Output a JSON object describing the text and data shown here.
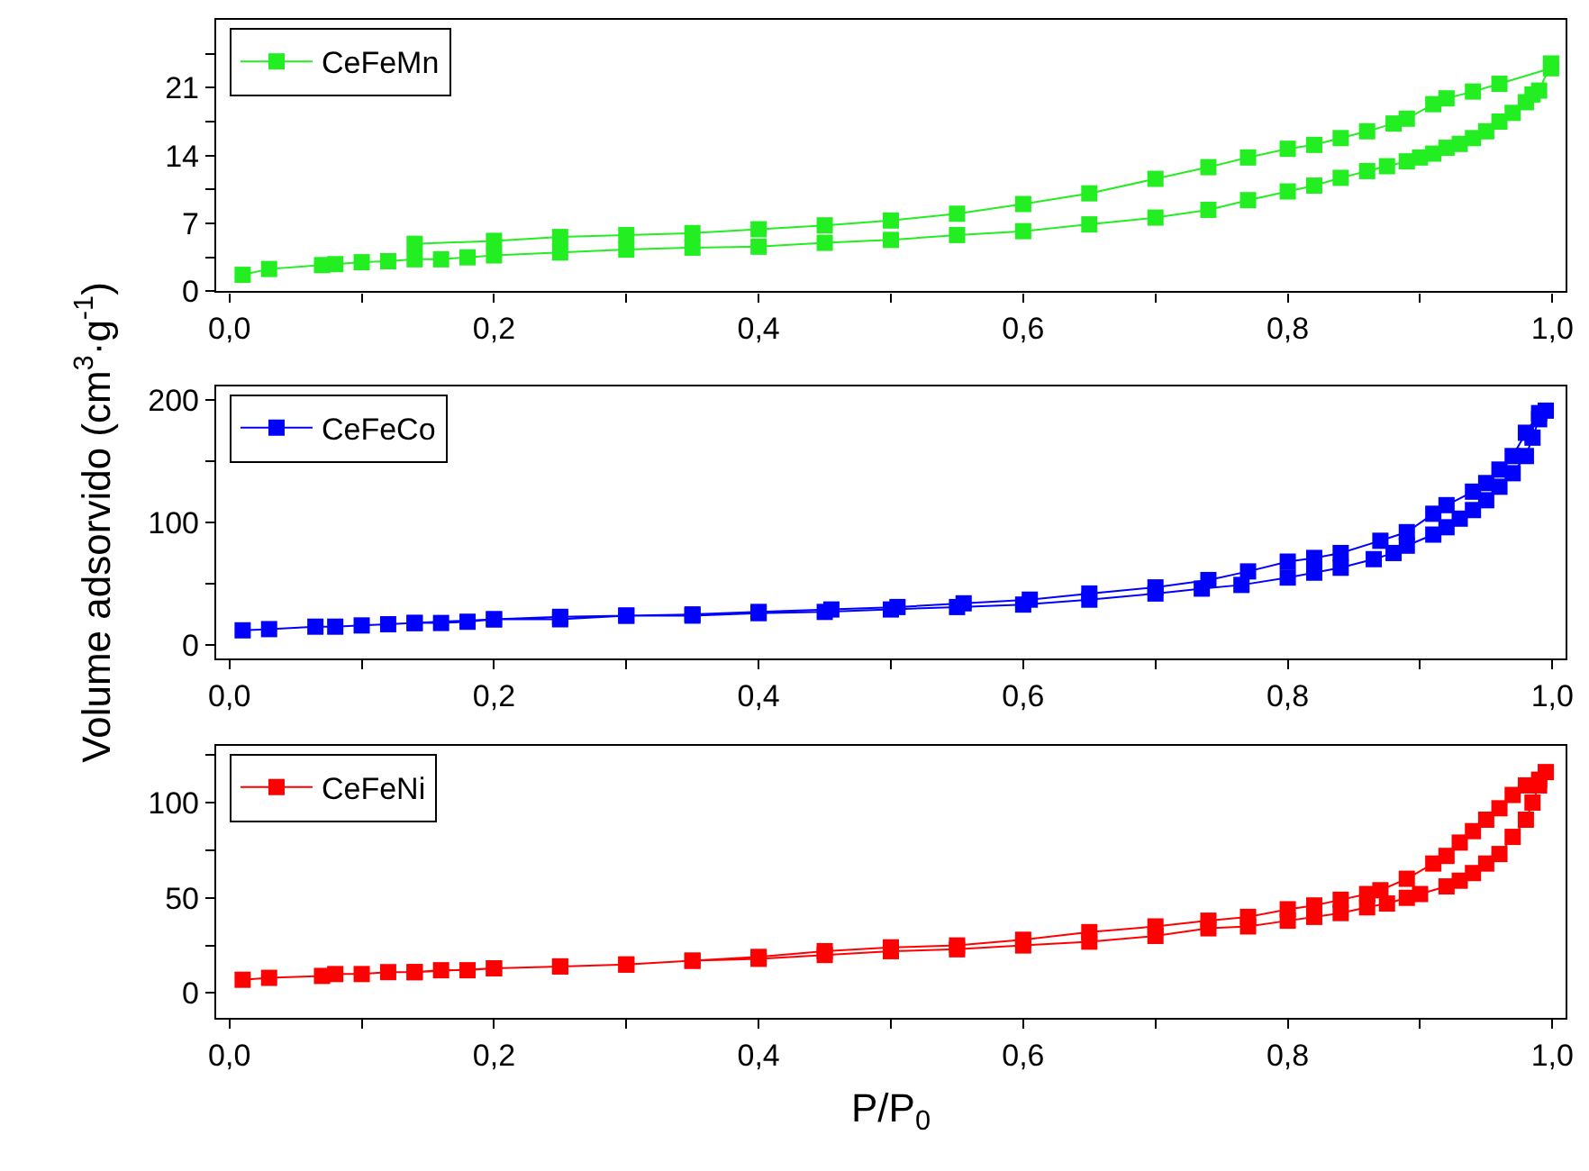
{
  "chart_data": [
    {
      "type": "line",
      "marker": "square",
      "line_style": "solid",
      "legend": "top left",
      "xlim": [
        -0.01,
        1.01
      ],
      "ylim": [
        0,
        28
      ],
      "xticks": [
        {
          "value": 0,
          "label": "0,0"
        },
        {
          "value": 0.1,
          "label": null
        },
        {
          "value": 0.2,
          "label": "0,2"
        },
        {
          "value": 0.3,
          "label": null
        },
        {
          "value": 0.4,
          "label": "0,4"
        },
        {
          "value": 0.5,
          "label": null
        },
        {
          "value": 0.6,
          "label": "0,6"
        },
        {
          "value": 0.7,
          "label": null
        },
        {
          "value": 0.8,
          "label": "0,8"
        },
        {
          "value": 0.9,
          "label": null
        },
        {
          "value": 1.0,
          "label": "1,0"
        }
      ],
      "yticks": [
        0,
        {
          "value": 3.5,
          "label": null
        },
        7,
        {
          "value": 10.5,
          "label": null
        },
        14,
        {
          "value": 17.5,
          "label": null
        },
        21,
        {
          "value": 24.5,
          "label": null
        }
      ],
      "series": [
        {
          "name": "CeFeMn",
          "color": "#22ee22",
          "x": [
            0.01,
            0.03,
            0.07,
            0.08,
            0.1,
            0.12,
            0.14,
            0.16,
            0.18,
            0.2,
            0.25,
            0.3,
            0.35,
            0.4,
            0.45,
            0.5,
            0.55,
            0.6,
            0.65,
            0.7,
            0.74,
            0.77,
            0.8,
            0.82,
            0.84,
            0.86,
            0.875,
            0.89,
            0.9,
            0.91,
            0.92,
            0.93,
            0.94,
            0.95,
            0.96,
            0.97,
            0.98,
            0.985,
            0.99,
            0.999,
            0.999,
            0.96,
            0.94,
            0.92,
            0.91,
            0.89,
            0.88,
            0.86,
            0.84,
            0.82,
            0.8,
            0.77,
            0.74,
            0.7,
            0.65,
            0.6,
            0.55,
            0.5,
            0.45,
            0.4,
            0.35,
            0.3,
            0.25,
            0.2,
            0.14
          ],
          "values": [
            1.7,
            2.3,
            2.7,
            2.8,
            3.0,
            3.1,
            3.3,
            3.3,
            3.5,
            3.7,
            4.0,
            4.3,
            4.5,
            4.6,
            5.0,
            5.3,
            5.8,
            6.2,
            6.9,
            7.6,
            8.4,
            9.4,
            10.3,
            10.9,
            11.7,
            12.4,
            12.9,
            13.4,
            13.8,
            14.2,
            14.8,
            15.2,
            15.8,
            16.5,
            17.5,
            18.4,
            19.5,
            20.3,
            20.7,
            23.5,
            23.0,
            21.4,
            20.6,
            19.9,
            19.3,
            17.8,
            17.3,
            16.5,
            15.8,
            15.1,
            14.7,
            13.8,
            12.8,
            11.6,
            10.1,
            9.0,
            8.0,
            7.3,
            6.8,
            6.4,
            6.0,
            5.8,
            5.6,
            5.2,
            4.9
          ]
        }
      ]
    },
    {
      "type": "line",
      "marker": "square",
      "line_style": "solid",
      "legend": "top left",
      "ylabel": "Volume adsorvido (cm$^{3}$·g$^{-1}$)",
      "xlim": [
        -0.01,
        1.01
      ],
      "ylim": [
        -11,
        211
      ],
      "xticks": [
        {
          "value": 0,
          "label": "0,0"
        },
        {
          "value": 0.1,
          "label": null
        },
        {
          "value": 0.2,
          "label": "0,2"
        },
        {
          "value": 0.3,
          "label": null
        },
        {
          "value": 0.4,
          "label": "0,4"
        },
        {
          "value": 0.5,
          "label": null
        },
        {
          "value": 0.6,
          "label": "0,6"
        },
        {
          "value": 0.7,
          "label": null
        },
        {
          "value": 0.8,
          "label": "0,8"
        },
        {
          "value": 0.9,
          "label": null
        },
        {
          "value": 1.0,
          "label": "1,0"
        }
      ],
      "yticks": [
        0,
        {
          "value": 50,
          "label": null
        },
        100,
        {
          "value": 150,
          "label": null
        },
        200
      ],
      "series": [
        {
          "name": "CeFeCo",
          "color": "#0000ff",
          "x": [
            0.01,
            0.03,
            0.065,
            0.08,
            0.1,
            0.12,
            0.14,
            0.16,
            0.18,
            0.2,
            0.25,
            0.3,
            0.35,
            0.4,
            0.45,
            0.5,
            0.55,
            0.6,
            0.65,
            0.7,
            0.735,
            0.765,
            0.8,
            0.82,
            0.84,
            0.865,
            0.88,
            0.89,
            0.91,
            0.92,
            0.93,
            0.94,
            0.95,
            0.96,
            0.97,
            0.98,
            0.985,
            0.99,
            0.995,
            0.99,
            0.98,
            0.97,
            0.96,
            0.95,
            0.94,
            0.92,
            0.91,
            0.89,
            0.87,
            0.84,
            0.82,
            0.8,
            0.77,
            0.74,
            0.7,
            0.65,
            0.605,
            0.555,
            0.505,
            0.455,
            0.4,
            0.35,
            0.3,
            0.25,
            0.2,
            0.14
          ],
          "values": [
            12,
            13,
            15,
            15,
            16,
            17,
            18,
            18,
            19,
            21,
            21,
            24,
            24,
            26,
            27,
            29,
            31,
            33,
            37,
            42,
            46,
            49,
            55,
            59,
            63,
            70,
            75,
            81,
            90,
            96,
            103,
            110,
            118,
            129,
            140,
            154,
            169,
            184,
            191,
            189,
            173,
            154,
            143,
            132,
            125,
            114,
            107,
            92,
            85,
            75,
            71,
            68,
            60,
            53,
            47,
            42,
            37,
            34,
            31,
            29,
            27,
            25,
            24,
            23,
            21,
            18
          ]
        }
      ]
    },
    {
      "type": "line",
      "marker": "square",
      "line_style": "solid",
      "legend": "top left",
      "xlabel": "P/P$_{0}$",
      "xlim": [
        -0.01,
        1.01
      ],
      "ylim": [
        -13,
        130
      ],
      "xticks": [
        {
          "value": 0,
          "label": "0,0"
        },
        {
          "value": 0.1,
          "label": null
        },
        {
          "value": 0.2,
          "label": "0,2"
        },
        {
          "value": 0.3,
          "label": null
        },
        {
          "value": 0.4,
          "label": "0,4"
        },
        {
          "value": 0.5,
          "label": null
        },
        {
          "value": 0.6,
          "label": "0,6"
        },
        {
          "value": 0.7,
          "label": null
        },
        {
          "value": 0.8,
          "label": "0,8"
        },
        {
          "value": 0.9,
          "label": null
        },
        {
          "value": 1.0,
          "label": "1,0"
        }
      ],
      "yticks": [
        0,
        {
          "value": 25,
          "label": null
        },
        50,
        {
          "value": 75,
          "label": null
        },
        100,
        {
          "value": 125,
          "label": null
        }
      ],
      "series": [
        {
          "name": "CeFeNi",
          "color": "#ff0000",
          "x": [
            0.01,
            0.03,
            0.07,
            0.08,
            0.1,
            0.12,
            0.14,
            0.16,
            0.18,
            0.2,
            0.25,
            0.3,
            0.35,
            0.4,
            0.45,
            0.5,
            0.55,
            0.6,
            0.65,
            0.7,
            0.74,
            0.77,
            0.8,
            0.82,
            0.84,
            0.86,
            0.875,
            0.89,
            0.9,
            0.92,
            0.93,
            0.94,
            0.95,
            0.96,
            0.97,
            0.98,
            0.985,
            0.99,
            0.995,
            0.99,
            0.98,
            0.97,
            0.96,
            0.95,
            0.94,
            0.93,
            0.92,
            0.91,
            0.89,
            0.87,
            0.86,
            0.84,
            0.82,
            0.8,
            0.77,
            0.74,
            0.7,
            0.65,
            0.6,
            0.55,
            0.5,
            0.45,
            0.4,
            0.35,
            0.3,
            0.25,
            0.2,
            0.14
          ],
          "values": [
            7,
            8,
            9,
            10,
            10,
            11,
            11,
            12,
            12,
            13,
            14,
            15,
            17,
            18,
            20,
            22,
            23,
            25,
            27,
            30,
            34,
            35,
            38,
            40,
            42,
            45,
            47,
            50,
            52,
            56,
            59,
            63,
            68,
            73,
            82,
            91,
            100,
            109,
            116,
            112,
            109,
            104,
            97,
            91,
            85,
            79,
            72,
            68,
            60,
            54,
            52,
            49,
            46,
            44,
            40,
            38,
            35,
            32,
            28,
            25,
            24,
            22,
            19,
            17,
            15,
            14,
            13,
            11
          ]
        }
      ]
    }
  ]
}
